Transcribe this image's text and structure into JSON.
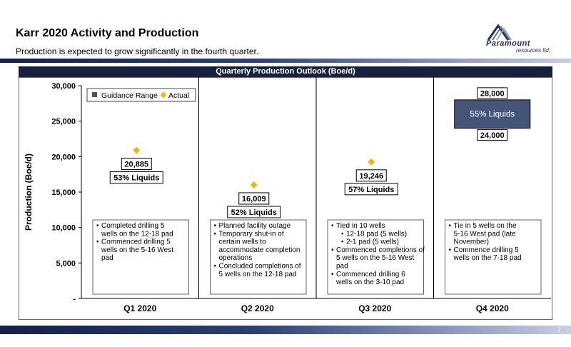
{
  "header": {
    "title": "Karr 2020 Activity and Production",
    "subtitle": "Production is expected to grow significantly in the fourth quarter."
  },
  "logo": {
    "name": "Paramount",
    "sub": "resources ltd."
  },
  "footer": {
    "page": "7"
  },
  "chart_data": {
    "type": "scatter",
    "title": "Quarterly Production Outlook (Boe/d)",
    "ylabel": "Production (Boe/d)",
    "xlabel": "",
    "ylim": [
      0,
      30000
    ],
    "yticks": [
      {
        "value": 0,
        "label": "-"
      },
      {
        "value": 5000,
        "label": "5,000"
      },
      {
        "value": 10000,
        "label": "10,000"
      },
      {
        "value": 15000,
        "label": "15,000"
      },
      {
        "value": 20000,
        "label": "20,000"
      },
      {
        "value": 25000,
        "label": "25,000"
      },
      {
        "value": 30000,
        "label": "30,000"
      }
    ],
    "categories": [
      "Q1 2020",
      "Q2 2020",
      "Q3 2020",
      "Q4 2020"
    ],
    "legend": {
      "placement": "top-left",
      "guidance": "Guidance Range",
      "actual": "Actual"
    },
    "colors": {
      "actual": "#f5b800",
      "guidance": "#45557a",
      "header": "#17213f"
    },
    "actual": [
      {
        "category": "Q1 2020",
        "value": 20885,
        "label": "20,885",
        "liquids": "53% Liquids"
      },
      {
        "category": "Q2 2020",
        "value": 16009,
        "label": "16,009",
        "liquids": "52% Liquids"
      },
      {
        "category": "Q3 2020",
        "value": 19246,
        "label": "19,246",
        "liquids": "57% Liquids"
      }
    ],
    "guidance": {
      "category": "Q4 2020",
      "low": 24000,
      "high": 28000,
      "low_label": "24,000",
      "high_label": "28,000",
      "liquids": "55% Liquids"
    },
    "notes": [
      [
        "Completed drilling 5 wells on the 12-18 pad",
        "Commenced drilling 5 wells on the 5-16 West pad"
      ],
      [
        "Planned facility outage",
        "Temporary shut-in of certain wells to accommodate completion operations",
        "Concluded completions of 5 wells on the 12-18 pad"
      ],
      [
        "Tied in 10 wells",
        "12-18 pad (5 wells)",
        "2-1 pad (5 wells)",
        "Commenced completions of 5 wells on the 5-16 West pad",
        "Commenced drilling 6 wells on the 3-10 pad"
      ],
      [
        "Tie in 5 wells on the 5-16 West pad (late November)",
        "Commence drilling 5 wells on the 7-18 pad"
      ]
    ]
  }
}
